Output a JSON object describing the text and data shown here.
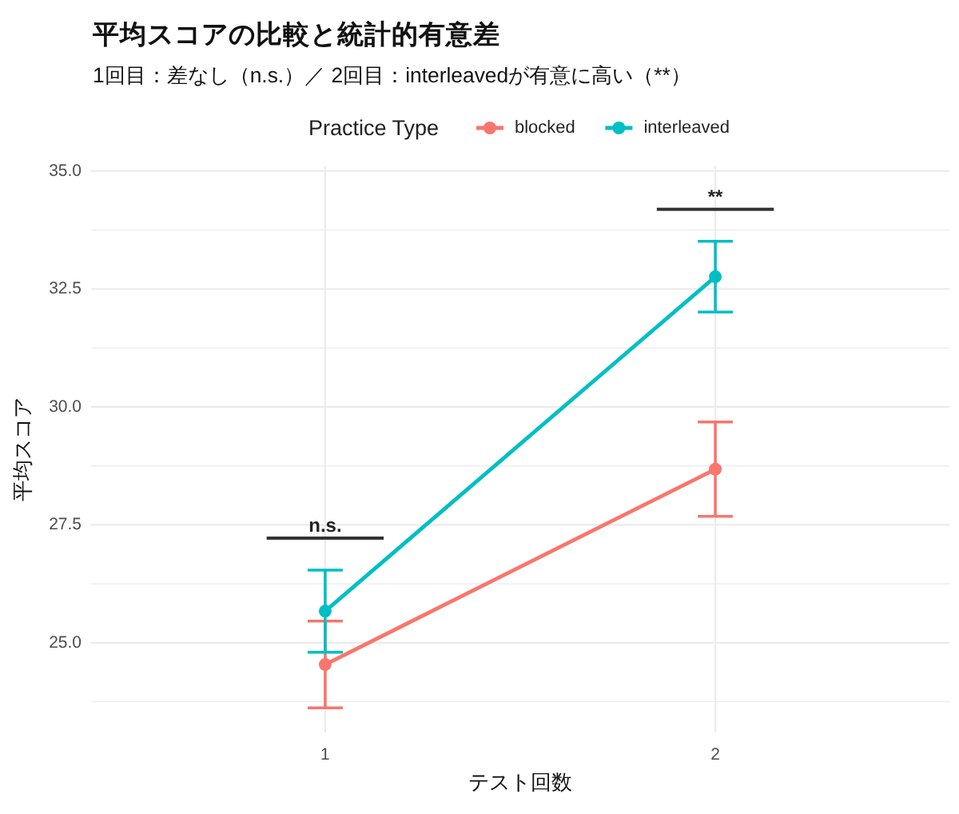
{
  "chart_data": {
    "type": "line",
    "title": "平均スコアの比較と統計的有意差",
    "subtitle": "1回目：差なし（n.s.）／ 2回目：interleavedが有意に高い（**）",
    "xlabel": "テスト回数",
    "ylabel": "平均スコア",
    "legend_title": "Practice Type",
    "categories": [
      "1",
      "2"
    ],
    "series": [
      {
        "name": "blocked",
        "color": "#f8766d",
        "values": [
          24.54,
          28.68
        ],
        "errors": [
          0.92,
          1.0
        ]
      },
      {
        "name": "interleaved",
        "color": "#00bfc4",
        "values": [
          25.67,
          32.76
        ],
        "errors": [
          0.87,
          0.75
        ]
      }
    ],
    "ylim": [
      23.1,
      35.1
    ],
    "yticks": [
      {
        "value": 23.75,
        "label": null
      },
      {
        "value": 25,
        "label": "25.0"
      },
      {
        "value": 26.25,
        "label": null
      },
      {
        "value": 27.5,
        "label": "27.5"
      },
      {
        "value": 28.75,
        "label": null
      },
      {
        "value": 30,
        "label": "30.0"
      },
      {
        "value": 31.25,
        "label": null
      },
      {
        "value": 32.5,
        "label": "32.5"
      },
      {
        "value": 33.75,
        "label": null
      },
      {
        "value": 35,
        "label": "35.0"
      }
    ],
    "annotations": [
      "n.s.",
      "**"
    ],
    "grid": true,
    "legend": "top",
    "marker": "circle",
    "line_style": "solid"
  }
}
